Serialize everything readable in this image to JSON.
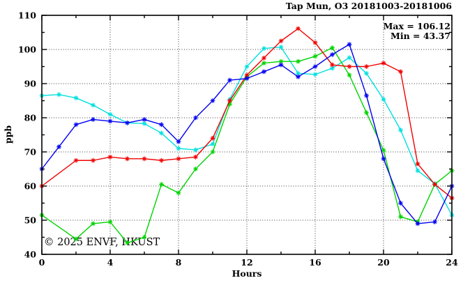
{
  "title": "Tap Mun, O3 20181003-20181006",
  "annotation": {
    "max_label": "Max = 106.12",
    "min_label": "Min =  43.37"
  },
  "watermark": "© 2025 ENVF, HKUST",
  "chart_data": {
    "type": "line",
    "title": "Tap Mun, O3 20181003-20181006",
    "xlabel": "Hours",
    "ylabel": "ppb",
    "xlim": [
      0,
      24
    ],
    "ylim": [
      40,
      110
    ],
    "x_major_ticks": [
      0,
      4,
      8,
      12,
      16,
      20,
      24
    ],
    "x_minor_ticks": [
      2,
      6,
      10,
      14,
      18,
      22
    ],
    "y_major_ticks": [
      40,
      50,
      60,
      70,
      80,
      90,
      100,
      110
    ],
    "y_minor_ticks": [
      45,
      55,
      65,
      75,
      85,
      95,
      105
    ],
    "grid": true,
    "legend_position": "none",
    "stat_max": 106.12,
    "stat_min": 43.37,
    "x": [
      0,
      1,
      2,
      3,
      4,
      5,
      6,
      7,
      8,
      9,
      10,
      11,
      12,
      13,
      14,
      15,
      16,
      17,
      18,
      19,
      20,
      21,
      22,
      23,
      24
    ],
    "series": [
      {
        "name": "cyan",
        "color": "#00e0e0",
        "values": [
          86.5,
          86.8,
          85.8,
          83.7,
          81,
          78.5,
          78.3,
          75.5,
          71,
          70.6,
          72.3,
          85.4,
          95,
          100.3,
          100.7,
          93,
          92.7,
          94.5,
          97.6,
          93,
          85.4,
          76.4,
          64.5,
          60.7,
          51.5
        ]
      },
      {
        "name": "green",
        "color": "#00d400",
        "values": [
          51.5,
          null,
          44.5,
          49,
          49.5,
          43.37,
          45,
          60.5,
          58,
          65,
          70,
          84,
          92,
          96,
          96.5,
          96.5,
          98,
          100.5,
          92.5,
          81.5,
          70.5,
          51,
          49.5,
          60.5,
          64.5
        ]
      },
      {
        "name": "red",
        "color": "#f00000",
        "values": [
          60,
          null,
          67.5,
          67.5,
          68.5,
          68,
          68,
          67.5,
          68,
          68.5,
          74,
          85,
          92.5,
          97.5,
          102.5,
          106.12,
          102,
          95.5,
          95,
          95,
          96,
          93.5,
          66.5,
          60.5,
          56.5
        ]
      },
      {
        "name": "blue",
        "color": "#0000f0",
        "values": [
          65,
          71.5,
          78,
          79.5,
          79,
          78.5,
          79.5,
          78,
          73,
          80,
          85,
          91,
          91.5,
          93.5,
          95.5,
          92,
          95,
          98.5,
          101.5,
          86.5,
          68,
          55,
          49,
          49.5,
          60
        ]
      }
    ]
  }
}
